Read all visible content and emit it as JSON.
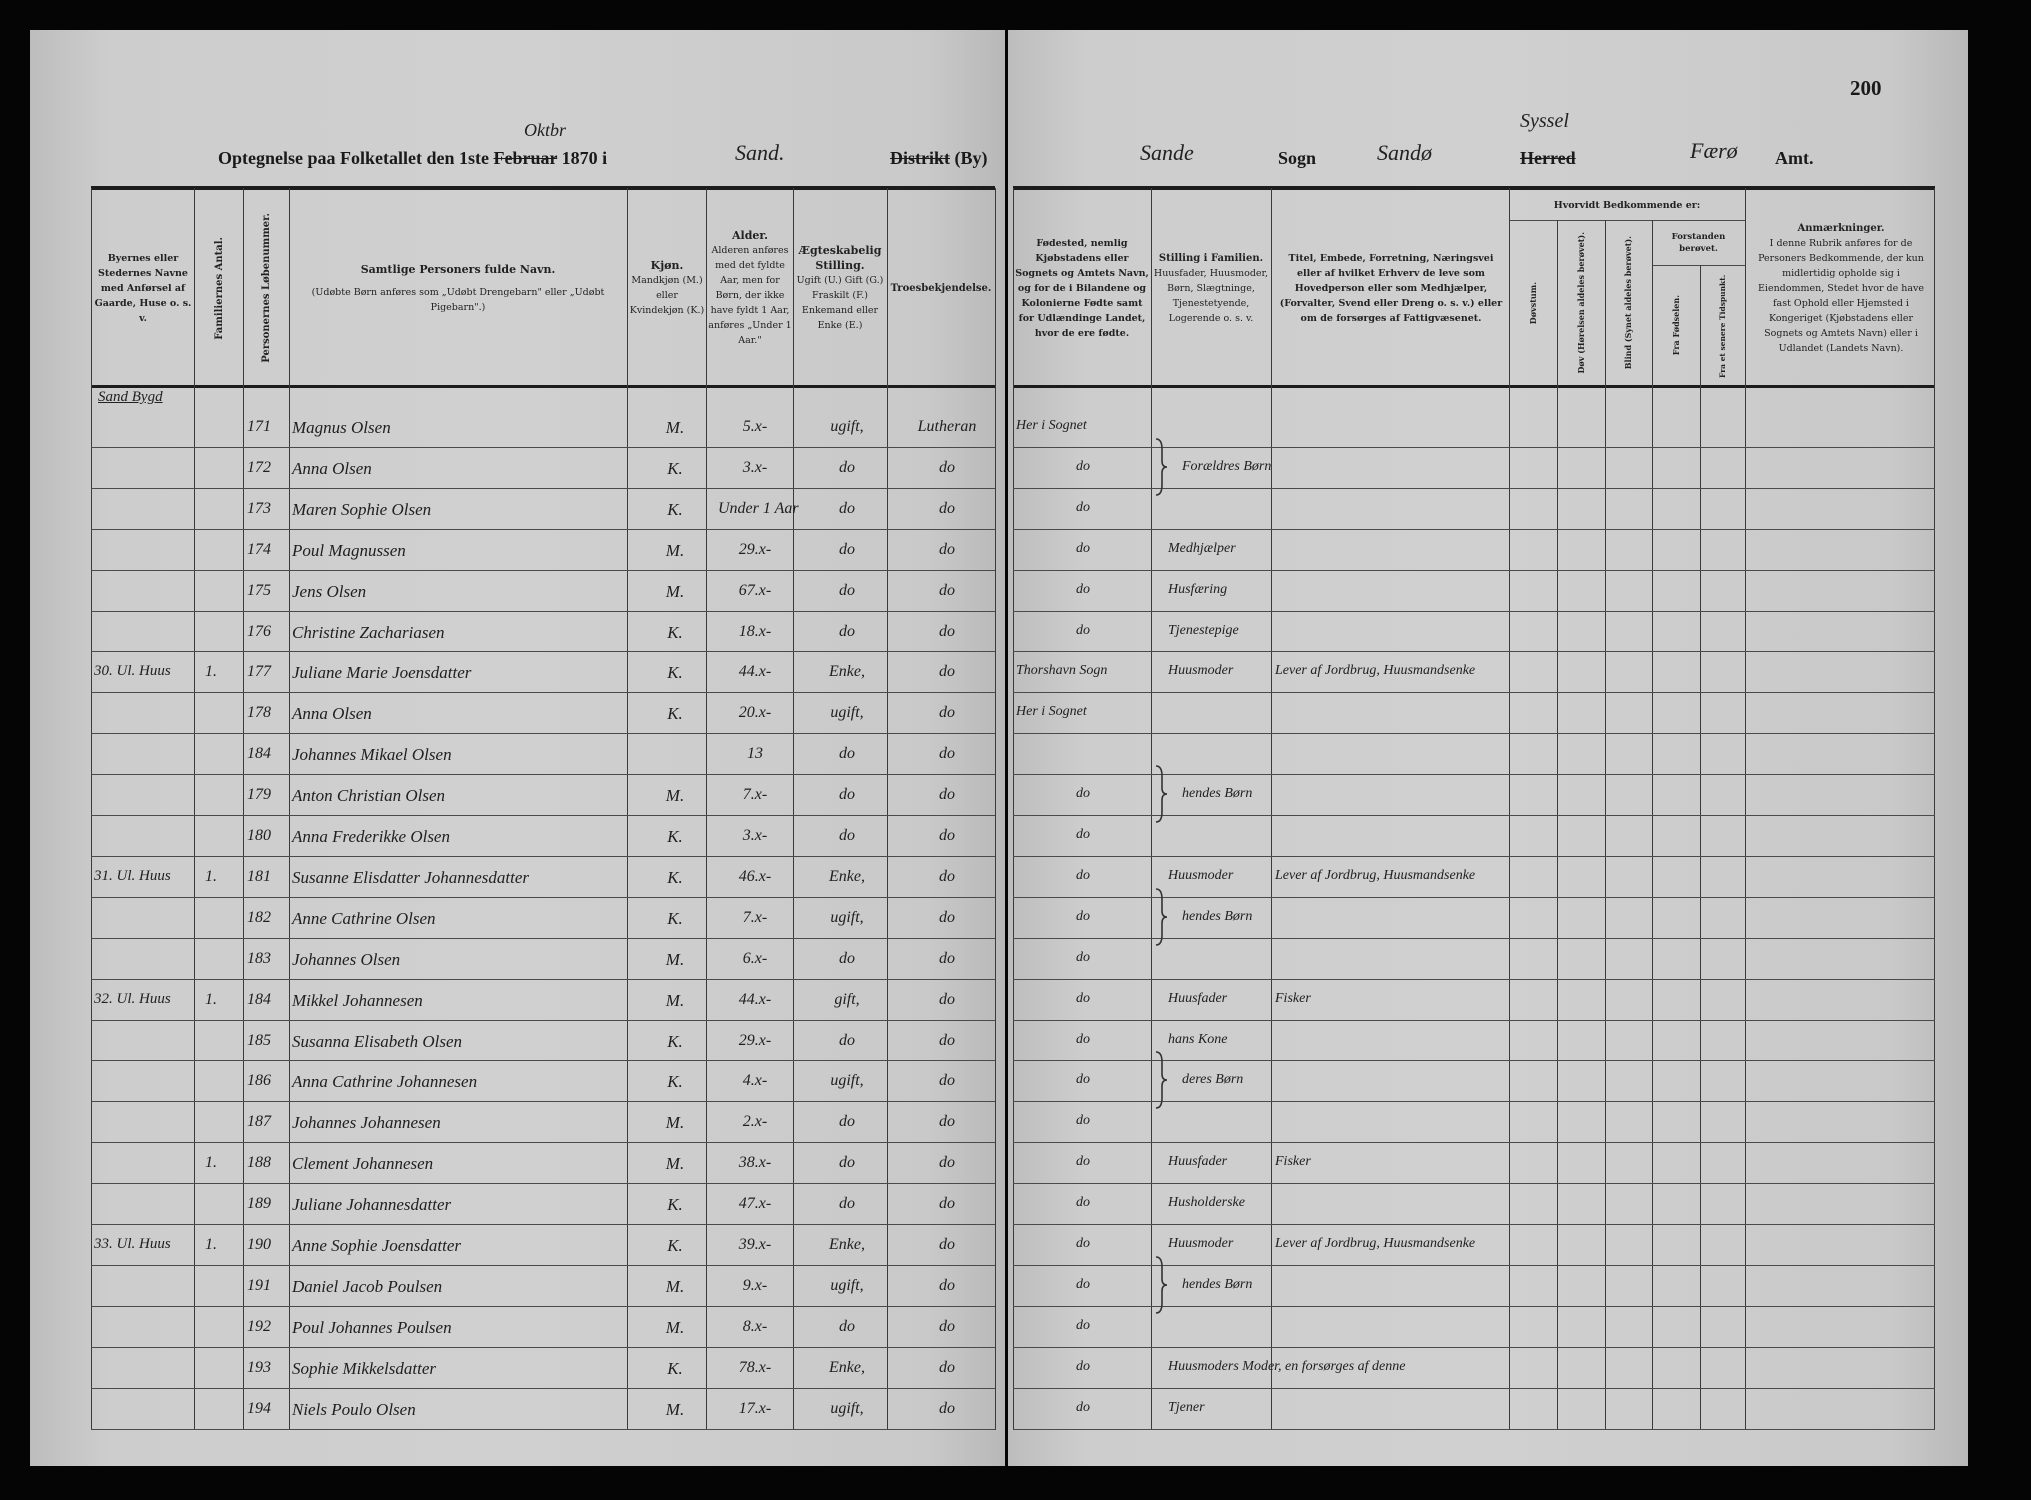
{
  "header_left": {
    "title_prefix": "Optegnelse paa Folketallet den 1ste",
    "month_struck": "Februar",
    "month_handwritten": "Oktbr",
    "year": "1870 i",
    "district_handwritten": "Sand.",
    "district_struck": "Distrikt",
    "district_suffix": "(By)"
  },
  "header_right": {
    "page_number": "200",
    "parish_handwritten": "Sande",
    "parish_label": "Sogn",
    "herred_handwritten": "Sandø",
    "syssel_handwritten": "Syssel",
    "herred_struck": "Herred",
    "amt_handwritten": "Færø",
    "amt_label": "Amt."
  },
  "columns_left": {
    "place": "Byernes eller Stedernes Navne med Anførsel af Gaarde, Huse o. s. v.",
    "families": "Familiernes Antal.",
    "number": "Personernes Løbenummer.",
    "name_main": "Samtlige Personers fulde Navn.",
    "name_sub": "(Udøbte Børn anføres som „Udøbt Drengebarn\" eller „Udøbt Pigebarn\".)",
    "sex_main": "Kjøn.",
    "sex_sub": "Mandkjøn (M.) eller Kvindekjøn (K.)",
    "age_main": "Alder.",
    "age_sub": "Alderen anføres med det fyldte Aar, men for Børn, der ikke have fyldt 1 Aar, anføres „Under 1 Aar.\"",
    "marital_main": "Ægteskabelig Stilling.",
    "marital_sub": "Ugift (U.) Gift (G.) Fraskilt (F.) Enkemand eller Enke (E.)",
    "religion": "Troesbekjendelse."
  },
  "columns_right": {
    "birthplace": "Fødested, nemlig Kjøbstadens eller Sognets og Amtets Navn, og for de i Bilandene og Kolonierne Fødte samt for Udlændinge Landet, hvor de ere fødte.",
    "position_main": "Stilling i Familien.",
    "position_sub": "Huusfader, Huusmoder, Børn, Slægtninge, Tjenestetyende, Logerende o. s. v.",
    "occupation": "Titel, Embede, Forretning, Næringsvei eller af hvilket Erhverv de leve som Hovedperson eller som Medhjælper, (Forvalter, Svend eller Dreng o. s. v.) eller om de forsørges af Fattigvæsenet.",
    "condition_group": "Hvorvidt Bedkommende er:",
    "deafmute": "Døvstum.",
    "deaf": "Døv (Hørelsen aldeles berøvet).",
    "blind": "Blind (Synet aldeles berøvet).",
    "insane_group": "Forstanden berøvet.",
    "from_birth": "Fra Fødselen.",
    "later": "Fra et senere Tidspunkt.",
    "remarks_main": "Anmærkninger.",
    "remarks_sub": "I denne Rubrik anføres for de Personers Bedkommende, der kun midlertidig opholde sig i Eiendommen, Stedet hvor de have fast Ophold eller Hjemsted i Kongeriget (Kjøbstadens eller Sognets og Amtets Navn) eller i Udlandet (Landets Navn)."
  },
  "section_label": "Sand Bygd",
  "rows": [
    {
      "place": "",
      "fam": "",
      "num": "171",
      "name": "Magnus Olsen",
      "sex": "M.",
      "age": "5.x-",
      "marital": "ugift,",
      "religion": "Lutheran",
      "birth": "Her i Sognet",
      "position": "",
      "occupation": ""
    },
    {
      "place": "",
      "fam": "",
      "num": "172",
      "name": "Anna Olsen",
      "sex": "K.",
      "age": "3.x-",
      "marital": "do",
      "religion": "do",
      "birth": "do",
      "position": "Forældres Børn",
      "brace": true,
      "occupation": ""
    },
    {
      "place": "",
      "fam": "",
      "num": "173",
      "name": "Maren Sophie Olsen",
      "sex": "K.",
      "age": "Under 1 Aar",
      "marital": "do",
      "religion": "do",
      "birth": "do",
      "position": "",
      "occupation": ""
    },
    {
      "place": "",
      "fam": "",
      "num": "174",
      "name": "Poul Magnussen",
      "sex": "M.",
      "age": "29.x-",
      "marital": "do",
      "religion": "do",
      "birth": "do",
      "position": "Medhjælper",
      "occupation": ""
    },
    {
      "place": "",
      "fam": "",
      "num": "175",
      "name": "Jens Olsen",
      "sex": "M.",
      "age": "67.x-",
      "marital": "do",
      "religion": "do",
      "birth": "do",
      "position": "Husfæring",
      "occupation": ""
    },
    {
      "place": "",
      "fam": "",
      "num": "176",
      "name": "Christine Zachariasen",
      "sex": "K.",
      "age": "18.x-",
      "marital": "do",
      "religion": "do",
      "birth": "do",
      "position": "Tjenestepige",
      "occupation": ""
    },
    {
      "place": "30. Ul. Huus",
      "fam": "1.",
      "num": "177",
      "name": "Juliane Marie Joensdatter",
      "sex": "K.",
      "age": "44.x-",
      "marital": "Enke,",
      "religion": "do",
      "birth": "Thorshavn Sogn",
      "position": "Huusmoder",
      "occupation": "Lever af Jordbrug, Huusmandsenke"
    },
    {
      "place": "",
      "fam": "",
      "num": "178",
      "name": "Anna Olsen",
      "sex": "K.",
      "age": "20.x-",
      "marital": "ugift,",
      "religion": "do",
      "birth": "Her i Sognet",
      "position": "",
      "occupation": ""
    },
    {
      "place": "",
      "fam": "",
      "num": "184",
      "name": "Johannes Mikael Olsen",
      "sex": "",
      "age": "13",
      "marital": "do",
      "religion": "do",
      "birth": "",
      "position": "",
      "occupation": ""
    },
    {
      "place": "",
      "fam": "",
      "num": "179",
      "name": "Anton Christian Olsen",
      "sex": "M.",
      "age": "7.x-",
      "marital": "do",
      "religion": "do",
      "birth": "do",
      "position": "hendes Børn",
      "brace": true,
      "occupation": ""
    },
    {
      "place": "",
      "fam": "",
      "num": "180",
      "name": "Anna Frederikke Olsen",
      "sex": "K.",
      "age": "3.x-",
      "marital": "do",
      "religion": "do",
      "birth": "do",
      "position": "",
      "occupation": ""
    },
    {
      "place": "31. Ul. Huus",
      "fam": "1.",
      "num": "181",
      "name": "Susanne Elisdatter Johannesdatter",
      "sex": "K.",
      "age": "46.x-",
      "marital": "Enke,",
      "religion": "do",
      "birth": "do",
      "position": "Huusmoder",
      "occupation": "Lever af Jordbrug, Huusmandsenke"
    },
    {
      "place": "",
      "fam": "",
      "num": "182",
      "name": "Anne Cathrine Olsen",
      "sex": "K.",
      "age": "7.x-",
      "marital": "ugift,",
      "religion": "do",
      "birth": "do",
      "position": "hendes Børn",
      "brace": true,
      "occupation": ""
    },
    {
      "place": "",
      "fam": "",
      "num": "183",
      "name": "Johannes Olsen",
      "sex": "M.",
      "age": "6.x-",
      "marital": "do",
      "religion": "do",
      "birth": "do",
      "position": "",
      "occupation": ""
    },
    {
      "place": "32. Ul. Huus",
      "fam": "1.",
      "num": "184",
      "name": "Mikkel Johannesen",
      "sex": "M.",
      "age": "44.x-",
      "marital": "gift,",
      "religion": "do",
      "birth": "do",
      "position": "Huusfader",
      "occupation": "Fisker"
    },
    {
      "place": "",
      "fam": "",
      "num": "185",
      "name": "Susanna Elisabeth Olsen",
      "sex": "K.",
      "age": "29.x-",
      "marital": "do",
      "religion": "do",
      "birth": "do",
      "position": "hans Kone",
      "occupation": ""
    },
    {
      "place": "",
      "fam": "",
      "num": "186",
      "name": "Anna Cathrine Johannesen",
      "sex": "K.",
      "age": "4.x-",
      "marital": "ugift,",
      "religion": "do",
      "birth": "do",
      "position": "deres Børn",
      "brace": true,
      "occupation": ""
    },
    {
      "place": "",
      "fam": "",
      "num": "187",
      "name": "Johannes Johannesen",
      "sex": "M.",
      "age": "2.x-",
      "marital": "do",
      "religion": "do",
      "birth": "do",
      "position": "",
      "occupation": ""
    },
    {
      "place": "",
      "fam": "1.",
      "num": "188",
      "name": "Clement Johannesen",
      "sex": "M.",
      "age": "38.x-",
      "marital": "do",
      "religion": "do",
      "birth": "do",
      "position": "Huusfader",
      "occupation": "Fisker"
    },
    {
      "place": "",
      "fam": "",
      "num": "189",
      "name": "Juliane Johannesdatter",
      "sex": "K.",
      "age": "47.x-",
      "marital": "do",
      "religion": "do",
      "birth": "do",
      "position": "Husholderske",
      "occupation": ""
    },
    {
      "place": "33. Ul. Huus",
      "fam": "1.",
      "num": "190",
      "name": "Anne Sophie Joensdatter",
      "sex": "K.",
      "age": "39.x-",
      "marital": "Enke,",
      "religion": "do",
      "birth": "do",
      "position": "Huusmoder",
      "occupation": "Lever af Jordbrug, Huusmandsenke"
    },
    {
      "place": "",
      "fam": "",
      "num": "191",
      "name": "Daniel Jacob Poulsen",
      "sex": "M.",
      "age": "9.x-",
      "marital": "ugift,",
      "religion": "do",
      "birth": "do",
      "position": "hendes Børn",
      "brace": true,
      "occupation": ""
    },
    {
      "place": "",
      "fam": "",
      "num": "192",
      "name": "Poul Johannes Poulsen",
      "sex": "M.",
      "age": "8.x-",
      "marital": "do",
      "religion": "do",
      "birth": "do",
      "position": "",
      "occupation": ""
    },
    {
      "place": "",
      "fam": "",
      "num": "193",
      "name": "Sophie Mikkelsdatter",
      "sex": "K.",
      "age": "78.x-",
      "marital": "Enke,",
      "religion": "do",
      "birth": "do",
      "position": "Huusmoders Moder, en forsørges af denne",
      "occupation": ""
    },
    {
      "place": "",
      "fam": "",
      "num": "194",
      "name": "Niels Poulo Olsen",
      "sex": "M.",
      "age": "17.x-",
      "marital": "ugift,",
      "religion": "do",
      "birth": "do",
      "position": "Tjener",
      "occupation": ""
    }
  ]
}
